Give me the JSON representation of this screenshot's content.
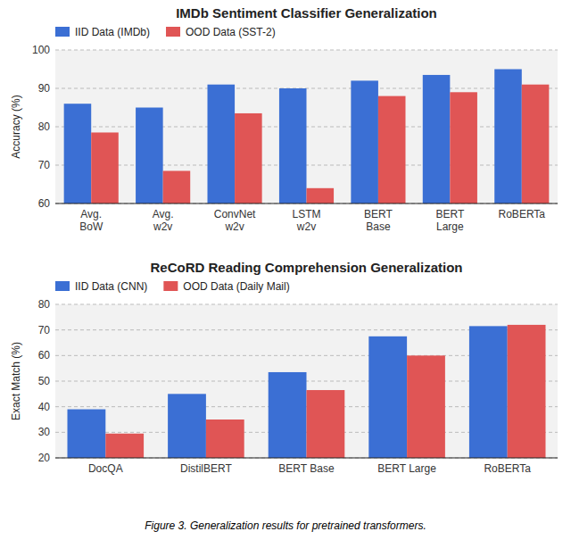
{
  "chart_data": [
    {
      "type": "bar",
      "title": "IMDb Sentiment Classifier Generalization",
      "y_label": "Accuracy (%)",
      "categories": [
        "Avg.\nBoW",
        "Avg.\nw2v",
        "ConvNet\nw2v",
        "LSTM\nw2v",
        "BERT\nBase",
        "BERT\nLarge",
        "RoBERTa"
      ],
      "series": [
        {
          "name": "IID Data (IMDb)",
          "color": "#3b6fd4",
          "values": [
            86.0,
            85.0,
            91.0,
            90.0,
            92.0,
            93.5,
            95.0
          ]
        },
        {
          "name": "OOD Data (SST-2)",
          "color": "#e05555",
          "values": [
            78.5,
            68.5,
            83.5,
            64.0,
            88.0,
            89.0,
            91.0
          ]
        }
      ],
      "ylim": [
        60,
        100
      ],
      "yticks": [
        60,
        70,
        80,
        90,
        100
      ],
      "grid": true,
      "legend": "upper left"
    },
    {
      "type": "bar",
      "title": "ReCoRD Reading Comprehension Generalization",
      "y_label": "Exact Match (%)",
      "categories": [
        "DocQA",
        "DistilBERT",
        "BERT Base",
        "BERT Large",
        "RoBERTa"
      ],
      "series": [
        {
          "name": "IID Data (CNN)",
          "color": "#3b6fd4",
          "values": [
            39.0,
            45.0,
            53.5,
            67.5,
            71.5
          ]
        },
        {
          "name": "OOD Data (Daily Mail)",
          "color": "#e05555",
          "values": [
            29.5,
            35.0,
            46.5,
            60.0,
            72.0
          ]
        }
      ],
      "ylim": [
        20,
        80
      ],
      "yticks": [
        20,
        30,
        40,
        50,
        60,
        70,
        80
      ],
      "grid": true,
      "legend": "upper left"
    }
  ],
  "caption": "Figure 3. Generalization results for pretrained transformers."
}
